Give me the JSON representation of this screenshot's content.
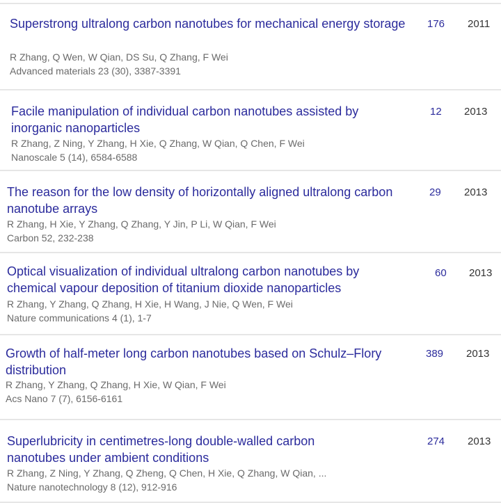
{
  "articles": [
    {
      "title": "Superstrong ultralong carbon nanotubes for mechanical energy storage",
      "authors": "R Zhang, Q Wen, W Qian, DS Su, Q Zhang, F Wei",
      "venue": "Advanced materials 23 (30), 3387-3391",
      "cited_by": "176",
      "year": "2011"
    },
    {
      "title": "Facile manipulation of individual carbon nanotubes assisted by inorganic nanoparticles",
      "authors": "R Zhang, Z Ning, Y Zhang, H Xie, Q Zhang, W Qian, Q Chen, F Wei",
      "venue": "Nanoscale 5 (14), 6584-6588",
      "cited_by": "12",
      "year": "2013"
    },
    {
      "title": "The reason for the low density of horizontally aligned ultralong carbon nanotube arrays",
      "authors": "R Zhang, H Xie, Y Zhang, Q Zhang, Y Jin, P Li, W Qian, F Wei",
      "venue": "Carbon 52, 232-238",
      "cited_by": "29",
      "year": "2013"
    },
    {
      "title": "Optical visualization of individual ultralong carbon nanotubes by chemical vapour deposition of titanium dioxide nanoparticles",
      "authors": "R Zhang, Y Zhang, Q Zhang, H Xie, H Wang, J Nie, Q Wen, F Wei",
      "venue": "Nature communications 4 (1), 1-7",
      "cited_by": "60",
      "year": "2013"
    },
    {
      "title": "Growth of half-meter long carbon nanotubes based on Schulz–Flory distribution",
      "authors": "R Zhang, Y Zhang, Q Zhang, H Xie, W Qian, F Wei",
      "venue": "Acs Nano 7 (7), 6156-6161",
      "cited_by": "389",
      "year": "2013"
    },
    {
      "title": "Superlubricity in centimetres-long double-walled carbon nanotubes under ambient conditions",
      "authors": "R Zhang, Z Ning, Y Zhang, Q Zheng, Q Chen, H Xie, Q Zhang, W Qian, ...",
      "venue": "Nature nanotechnology 8 (12), 912-916",
      "cited_by": "274",
      "year": "2013"
    }
  ],
  "colors": {
    "title": "#2b2b9c",
    "meta": "#6a6a6a",
    "divider": "#e6e6e6"
  }
}
